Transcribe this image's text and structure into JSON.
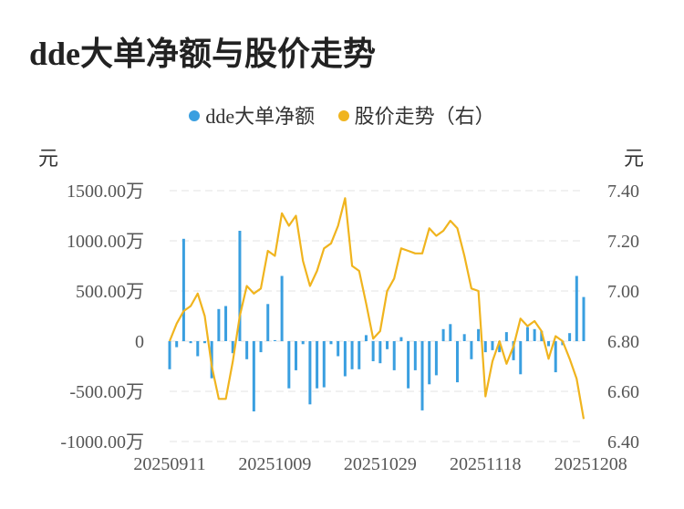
{
  "title": "dde大单净额与股价走势",
  "colors": {
    "bar": "#3a9fe0",
    "line": "#f0b41e",
    "grid": "#e3e3e3",
    "text": "#555555"
  },
  "chart_data": {
    "type": "bar+line",
    "legend": [
      {
        "name": "dde大单净额",
        "color": "#3a9fe0"
      },
      {
        "name": "股价走势（右）",
        "color": "#f0b41e"
      }
    ],
    "legend_position": "top",
    "left_unit": "元",
    "right_unit": "元",
    "y_left": {
      "ylim": [
        -1000,
        1500
      ],
      "ticks": [
        {
          "value": 1500,
          "label": "1500.00万"
        },
        {
          "value": 1000,
          "label": "1000.00万"
        },
        {
          "value": 500,
          "label": "500.00万"
        },
        {
          "value": 0,
          "label": "0"
        },
        {
          "value": -500,
          "label": "-500.00万"
        },
        {
          "value": -1000,
          "label": "-1000.00万"
        }
      ]
    },
    "y_right": {
      "ylim": [
        6.4,
        7.4
      ],
      "ticks": [
        {
          "value": 7.4,
          "label": "7.40"
        },
        {
          "value": 7.2,
          "label": "7.20"
        },
        {
          "value": 7.0,
          "label": "7.00"
        },
        {
          "value": 6.8,
          "label": "6.80"
        },
        {
          "value": 6.6,
          "label": "6.60"
        },
        {
          "value": 6.4,
          "label": "6.40"
        }
      ]
    },
    "x_ticks": [
      {
        "index": 0,
        "label": "20250911"
      },
      {
        "index": 15,
        "label": "20251009"
      },
      {
        "index": 30,
        "label": "20251029"
      },
      {
        "index": 45,
        "label": "20251118"
      },
      {
        "index": 60,
        "label": "20251208"
      }
    ],
    "grid": true,
    "bar_values": [
      -280,
      -60,
      1020,
      -20,
      -150,
      -20,
      -370,
      320,
      350,
      -120,
      1100,
      -180,
      -700,
      -110,
      370,
      10,
      650,
      -470,
      -290,
      -30,
      -630,
      -470,
      -460,
      -30,
      -150,
      -350,
      -280,
      -280,
      60,
      -200,
      -220,
      -80,
      -290,
      40,
      -470,
      -290,
      -690,
      -430,
      -340,
      120,
      170,
      -410,
      70,
      -180,
      120,
      -110,
      -90,
      -110,
      90,
      -190,
      -330,
      140,
      120,
      100,
      -50,
      -310,
      -40,
      80,
      650,
      440
    ],
    "line_values": [
      6.8,
      6.87,
      6.92,
      6.94,
      6.99,
      6.9,
      6.7,
      6.57,
      6.57,
      6.72,
      6.9,
      7.02,
      6.99,
      7.01,
      7.16,
      7.14,
      7.31,
      7.26,
      7.3,
      7.12,
      7.02,
      7.08,
      7.17,
      7.19,
      7.26,
      7.37,
      7.1,
      7.08,
      6.95,
      6.81,
      6.84,
      7.0,
      7.05,
      7.17,
      7.16,
      7.15,
      7.15,
      7.25,
      7.22,
      7.24,
      7.28,
      7.25,
      7.14,
      7.01,
      7.0,
      6.58,
      6.72,
      6.8,
      6.71,
      6.78,
      6.89,
      6.86,
      6.88,
      6.84,
      6.73,
      6.82,
      6.8,
      6.73,
      6.65,
      6.49
    ]
  }
}
